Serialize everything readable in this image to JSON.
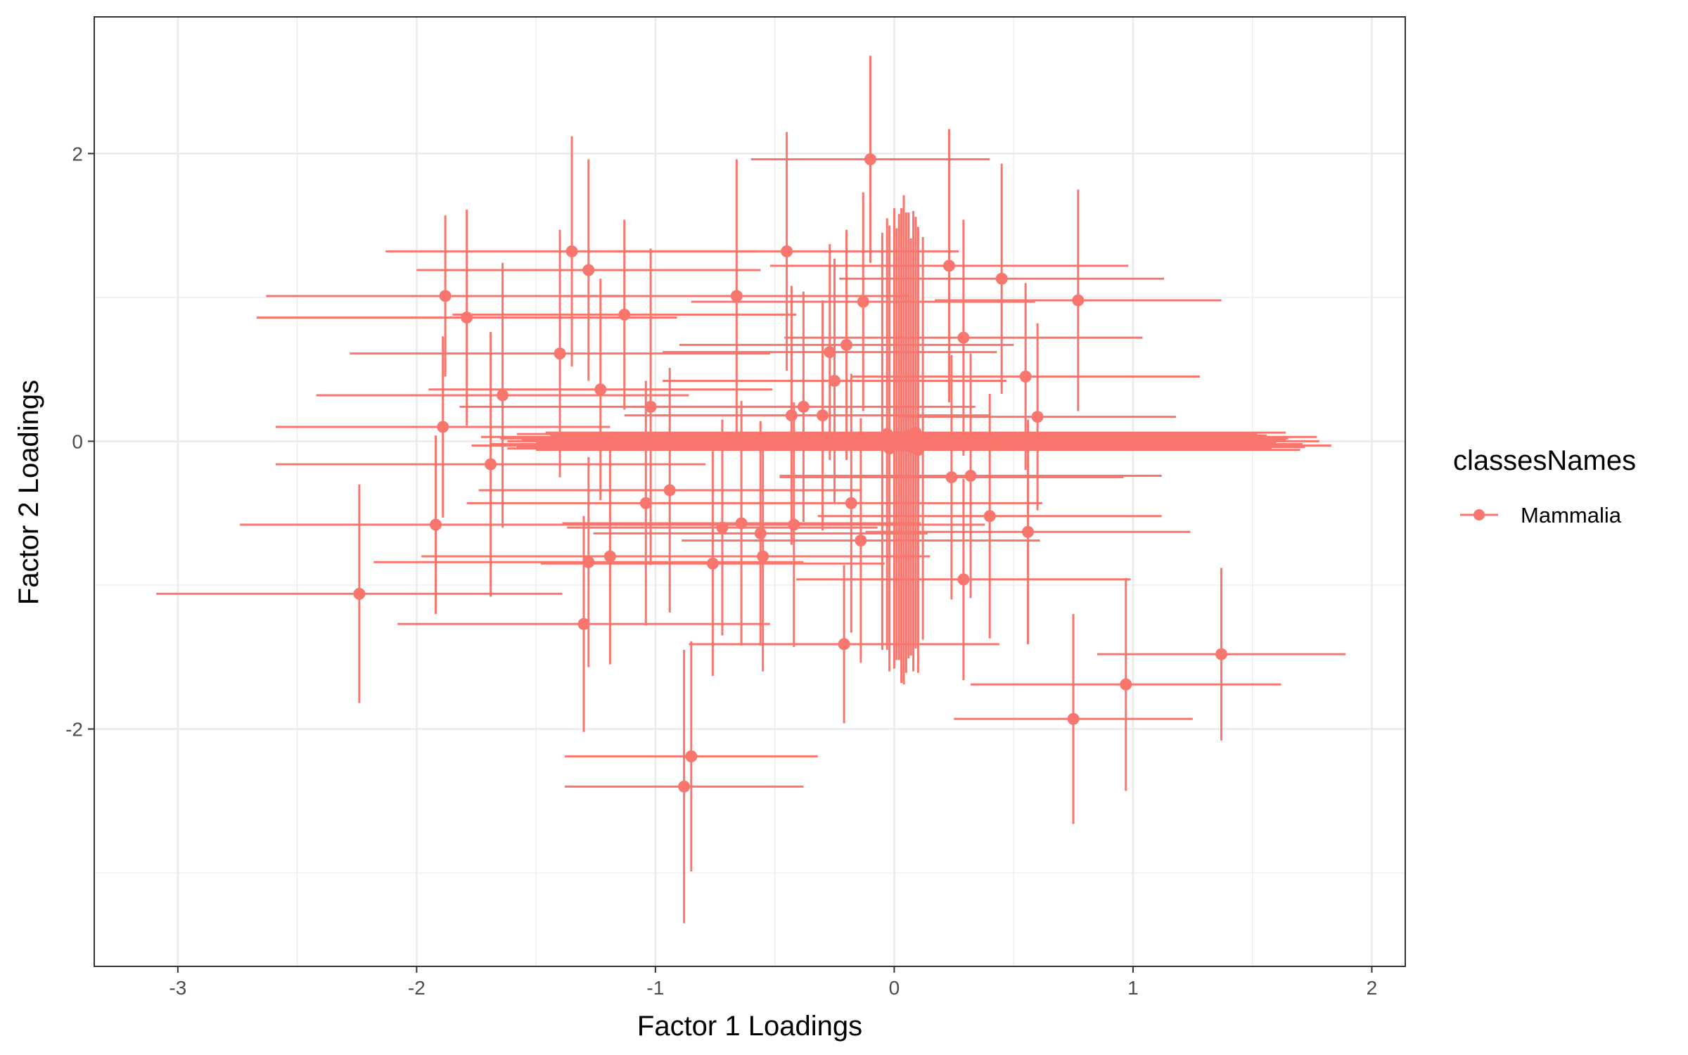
{
  "chart_data": {
    "type": "scatter",
    "subtype": "errorbar-scatter",
    "title": "",
    "xlabel": "Factor 1 Loadings",
    "ylabel": "Factor 2 Loadings",
    "xlim": [
      -3.35,
      2.14
    ],
    "ylim": [
      -3.65,
      2.95
    ],
    "x_ticks": [
      -3,
      -2,
      -1,
      0,
      1,
      2
    ],
    "y_ticks": [
      -2,
      0,
      2
    ],
    "x_tick_labels": [
      "-3",
      "-2",
      "-1",
      "0",
      "1",
      "2"
    ],
    "y_tick_labels": [
      "-2",
      "0",
      "2"
    ],
    "grid": true,
    "legend": {
      "title": "classesNames",
      "position": "right",
      "entries": [
        "Mammalia"
      ]
    },
    "series": [
      {
        "name": "Mammalia",
        "color": "#F8766D",
        "points": [
          {
            "x": -2.24,
            "y": -1.06,
            "xerr": 0.85,
            "yerr": 0.76
          },
          {
            "x": -1.92,
            "y": -0.58,
            "xerr": 0.82,
            "yerr": 0.62
          },
          {
            "x": -1.88,
            "y": 1.01,
            "xerr": 0.75,
            "yerr": 0.56
          },
          {
            "x": -1.89,
            "y": 0.1,
            "xerr": 0.7,
            "yerr": 0.63
          },
          {
            "x": -1.79,
            "y": 0.86,
            "xerr": 0.88,
            "yerr": 0.75
          },
          {
            "x": -1.69,
            "y": -0.16,
            "xerr": 0.9,
            "yerr": 0.92
          },
          {
            "x": -1.64,
            "y": 0.32,
            "xerr": 0.78,
            "yerr": 0.92
          },
          {
            "x": -1.4,
            "y": 0.61,
            "xerr": 0.88,
            "yerr": 0.86
          },
          {
            "x": -1.35,
            "y": 1.32,
            "xerr": 0.78,
            "yerr": 0.8
          },
          {
            "x": -1.28,
            "y": 1.19,
            "xerr": 0.72,
            "yerr": 0.77
          },
          {
            "x": -1.3,
            "y": -1.27,
            "xerr": 0.78,
            "yerr": 0.75
          },
          {
            "x": -1.28,
            "y": -0.84,
            "xerr": 0.9,
            "yerr": 0.73
          },
          {
            "x": -1.23,
            "y": 0.36,
            "xerr": 0.72,
            "yerr": 0.77
          },
          {
            "x": -1.19,
            "y": -0.8,
            "xerr": 0.79,
            "yerr": 0.75
          },
          {
            "x": -1.13,
            "y": 0.88,
            "xerr": 0.72,
            "yerr": 0.66
          },
          {
            "x": -1.04,
            "y": -0.43,
            "xerr": 0.75,
            "yerr": 0.85
          },
          {
            "x": -1.02,
            "y": 0.24,
            "xerr": 0.8,
            "yerr": 1.1
          },
          {
            "x": -0.94,
            "y": -0.34,
            "xerr": 0.8,
            "yerr": 0.85
          },
          {
            "x": -0.88,
            "y": -2.4,
            "xerr": 0.5,
            "yerr": 0.95
          },
          {
            "x": -0.85,
            "y": -2.19,
            "xerr": 0.53,
            "yerr": 0.8
          },
          {
            "x": -0.76,
            "y": -0.85,
            "xerr": 0.72,
            "yerr": 0.78
          },
          {
            "x": -0.72,
            "y": -0.6,
            "xerr": 0.65,
            "yerr": 0.75
          },
          {
            "x": -0.66,
            "y": 1.01,
            "xerr": 0.72,
            "yerr": 0.95
          },
          {
            "x": -0.64,
            "y": -0.57,
            "xerr": 0.75,
            "yerr": 0.85
          },
          {
            "x": -0.56,
            "y": -0.64,
            "xerr": 0.7,
            "yerr": 0.78
          },
          {
            "x": -0.55,
            "y": -0.8,
            "xerr": 0.7,
            "yerr": 0.8
          },
          {
            "x": -0.45,
            "y": 1.32,
            "xerr": 0.72,
            "yerr": 0.83
          },
          {
            "x": -0.43,
            "y": 0.18,
            "xerr": 0.7,
            "yerr": 0.9
          },
          {
            "x": -0.42,
            "y": -0.58,
            "xerr": 0.8,
            "yerr": 0.85
          },
          {
            "x": -0.38,
            "y": 0.24,
            "xerr": 0.72,
            "yerr": 0.8
          },
          {
            "x": -0.3,
            "y": 0.18,
            "xerr": 0.7,
            "yerr": 0.8
          },
          {
            "x": -0.27,
            "y": 0.62,
            "xerr": 0.7,
            "yerr": 0.75
          },
          {
            "x": -0.25,
            "y": 0.42,
            "xerr": 0.72,
            "yerr": 0.85
          },
          {
            "x": -0.21,
            "y": -1.41,
            "xerr": 0.65,
            "yerr": 0.55
          },
          {
            "x": -0.2,
            "y": 0.67,
            "xerr": 0.7,
            "yerr": 0.8
          },
          {
            "x": -0.18,
            "y": -0.43,
            "xerr": 0.8,
            "yerr": 0.9
          },
          {
            "x": -0.14,
            "y": -0.69,
            "xerr": 0.75,
            "yerr": 0.85
          },
          {
            "x": -0.13,
            "y": 0.97,
            "xerr": 0.72,
            "yerr": 0.76
          },
          {
            "x": -0.1,
            "y": 1.96,
            "xerr": 0.5,
            "yerr": 0.72
          },
          {
            "x": -0.05,
            "y": 0.0,
            "xerr": 1.5,
            "yerr": 1.45
          },
          {
            "x": -0.03,
            "y": 0.05,
            "xerr": 1.55,
            "yerr": 1.5
          },
          {
            "x": -0.02,
            "y": -0.05,
            "xerr": 1.6,
            "yerr": 1.55
          },
          {
            "x": 0.0,
            "y": 0.02,
            "xerr": 1.65,
            "yerr": 1.6
          },
          {
            "x": 0.01,
            "y": -0.02,
            "xerr": 1.7,
            "yerr": 1.5
          },
          {
            "x": 0.02,
            "y": 0.03,
            "xerr": 1.75,
            "yerr": 1.55
          },
          {
            "x": 0.03,
            "y": -0.03,
            "xerr": 1.8,
            "yerr": 1.65
          },
          {
            "x": 0.04,
            "y": 0.01,
            "xerr": 1.6,
            "yerr": 1.7
          },
          {
            "x": 0.05,
            "y": -0.01,
            "xerr": 1.55,
            "yerr": 1.6
          },
          {
            "x": 0.06,
            "y": 0.04,
            "xerr": 1.5,
            "yerr": 1.55
          },
          {
            "x": 0.07,
            "y": -0.04,
            "xerr": 1.65,
            "yerr": 1.45
          },
          {
            "x": 0.08,
            "y": 0.0,
            "xerr": 1.7,
            "yerr": 1.6
          },
          {
            "x": 0.09,
            "y": 0.06,
            "xerr": 1.55,
            "yerr": 1.5
          },
          {
            "x": 0.1,
            "y": -0.06,
            "xerr": 1.6,
            "yerr": 1.55
          },
          {
            "x": 0.12,
            "y": 0.02,
            "xerr": 1.5,
            "yerr": 1.4
          },
          {
            "x": 0.23,
            "y": 1.22,
            "xerr": 0.75,
            "yerr": 0.95
          },
          {
            "x": 0.24,
            "y": -0.25,
            "xerr": 0.72,
            "yerr": 0.85
          },
          {
            "x": 0.29,
            "y": 0.72,
            "xerr": 0.75,
            "yerr": 0.82
          },
          {
            "x": 0.29,
            "y": -0.96,
            "xerr": 0.7,
            "yerr": 0.7
          },
          {
            "x": 0.32,
            "y": -0.24,
            "xerr": 0.8,
            "yerr": 0.85
          },
          {
            "x": 0.4,
            "y": -0.52,
            "xerr": 0.72,
            "yerr": 0.85
          },
          {
            "x": 0.45,
            "y": 1.13,
            "xerr": 0.68,
            "yerr": 0.8
          },
          {
            "x": 0.55,
            "y": 0.45,
            "xerr": 0.73,
            "yerr": 0.65
          },
          {
            "x": 0.56,
            "y": -0.63,
            "xerr": 0.68,
            "yerr": 0.78
          },
          {
            "x": 0.6,
            "y": 0.17,
            "xerr": 0.58,
            "yerr": 0.65
          },
          {
            "x": 0.75,
            "y": -1.93,
            "xerr": 0.5,
            "yerr": 0.73
          },
          {
            "x": 0.77,
            "y": 0.98,
            "xerr": 0.6,
            "yerr": 0.77
          },
          {
            "x": 0.97,
            "y": -1.69,
            "xerr": 0.65,
            "yerr": 0.74
          },
          {
            "x": 1.37,
            "y": -1.48,
            "xerr": 0.52,
            "yerr": 0.6
          }
        ]
      }
    ]
  }
}
